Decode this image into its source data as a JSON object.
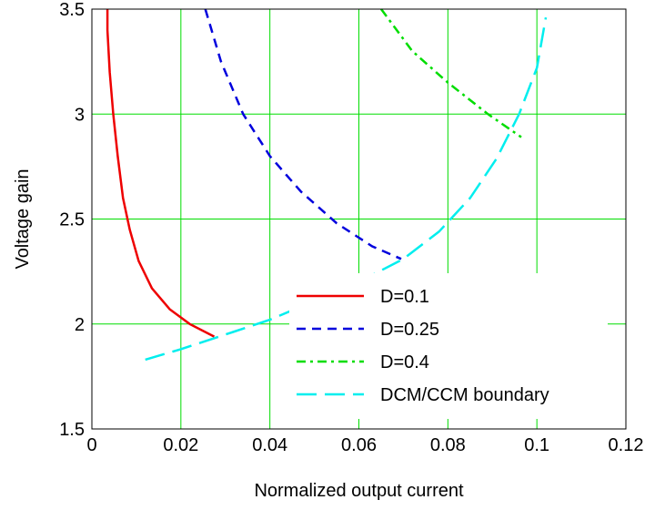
{
  "chart_data": {
    "type": "line",
    "title": "",
    "xlabel": "Normalized output current",
    "ylabel": "Voltage gain",
    "xlim": [
      0,
      0.12
    ],
    "ylim": [
      1.5,
      3.5
    ],
    "x_ticks": [
      0,
      0.02,
      0.04,
      0.06,
      0.08,
      0.1,
      0.12
    ],
    "x_tick_labels": [
      "0",
      "0.02",
      "0.04",
      "0.06",
      "0.08",
      "0.1",
      "0.12"
    ],
    "y_ticks": [
      1.5,
      2,
      2.5,
      3,
      3.5
    ],
    "y_tick_labels": [
      "1.5",
      "2",
      "2.5",
      "3",
      "3.5"
    ],
    "grid": true,
    "grid_color": "#00dd00",
    "legend_position": "bottom-right",
    "series": [
      {
        "name": "D=0.1",
        "color": "#ee0000",
        "style": "solid",
        "points": [
          [
            0.0035,
            3.5
          ],
          [
            0.0035,
            3.4
          ],
          [
            0.004,
            3.2
          ],
          [
            0.0048,
            3.0
          ],
          [
            0.0058,
            2.8
          ],
          [
            0.007,
            2.6
          ],
          [
            0.0085,
            2.45
          ],
          [
            0.0105,
            2.3
          ],
          [
            0.0135,
            2.17
          ],
          [
            0.0175,
            2.07
          ],
          [
            0.022,
            2.0
          ],
          [
            0.0275,
            1.94
          ]
        ]
      },
      {
        "name": "D=0.25",
        "color": "#0000dd",
        "style": "dash",
        "points": [
          [
            0.0255,
            3.5
          ],
          [
            0.029,
            3.25
          ],
          [
            0.034,
            3.0
          ],
          [
            0.04,
            2.8
          ],
          [
            0.047,
            2.63
          ],
          [
            0.055,
            2.48
          ],
          [
            0.063,
            2.37
          ],
          [
            0.0695,
            2.31
          ]
        ]
      },
      {
        "name": "D=0.4",
        "color": "#00dd00",
        "style": "dashdot",
        "points": [
          [
            0.065,
            3.5
          ],
          [
            0.072,
            3.3
          ],
          [
            0.08,
            3.15
          ],
          [
            0.089,
            3.0
          ],
          [
            0.0965,
            2.89
          ]
        ]
      },
      {
        "name": "DCM/CCM boundary",
        "color": "#00eeee",
        "style": "longdash",
        "points": [
          [
            0.012,
            1.83
          ],
          [
            0.02,
            1.88
          ],
          [
            0.03,
            1.95
          ],
          [
            0.04,
            2.02
          ],
          [
            0.05,
            2.11
          ],
          [
            0.06,
            2.2
          ],
          [
            0.07,
            2.31
          ],
          [
            0.078,
            2.44
          ],
          [
            0.085,
            2.6
          ],
          [
            0.091,
            2.79
          ],
          [
            0.096,
            3.0
          ],
          [
            0.1,
            3.22
          ],
          [
            0.102,
            3.46
          ]
        ]
      }
    ]
  }
}
